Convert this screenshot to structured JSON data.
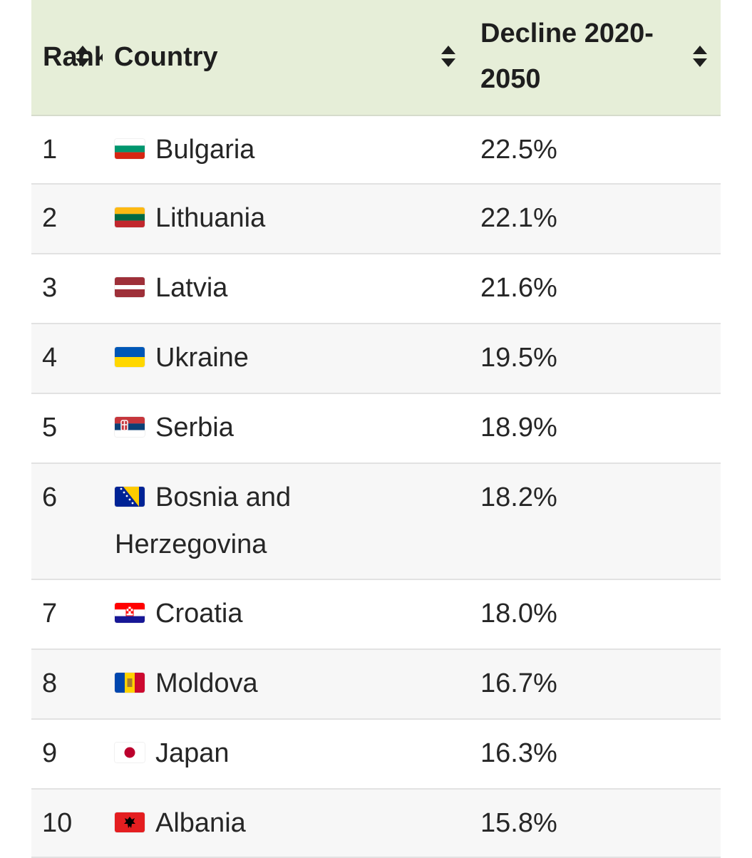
{
  "table": {
    "headers": {
      "rank": "Rank",
      "country": "Country",
      "decline": "Decline 2020-2050"
    },
    "rows": [
      {
        "rank": "1",
        "country": "Bulgaria",
        "value": "22.5%",
        "flag": "bulgaria-flag-icon"
      },
      {
        "rank": "2",
        "country": "Lithuania",
        "value": "22.1%",
        "flag": "lithuania-flag-icon"
      },
      {
        "rank": "3",
        "country": "Latvia",
        "value": "21.6%",
        "flag": "latvia-flag-icon"
      },
      {
        "rank": "4",
        "country": "Ukraine",
        "value": "19.5%",
        "flag": "ukraine-flag-icon"
      },
      {
        "rank": "5",
        "country": "Serbia",
        "value": "18.9%",
        "flag": "serbia-flag-icon"
      },
      {
        "rank": "6",
        "country": "Bosnia and Herzegovina",
        "value": "18.2%",
        "flag": "bosnia-flag-icon"
      },
      {
        "rank": "7",
        "country": "Croatia",
        "value": "18.0%",
        "flag": "croatia-flag-icon"
      },
      {
        "rank": "8",
        "country": "Moldova",
        "value": "16.7%",
        "flag": "moldova-flag-icon"
      },
      {
        "rank": "9",
        "country": "Japan",
        "value": "16.3%",
        "flag": "japan-flag-icon"
      },
      {
        "rank": "10",
        "country": "Albania",
        "value": "15.8%",
        "flag": "albania-flag-icon"
      }
    ]
  },
  "colors": {
    "header_bg": "#e6eed8",
    "alt_row_bg": "#f7f7f7",
    "border": "#e2e2e2"
  }
}
